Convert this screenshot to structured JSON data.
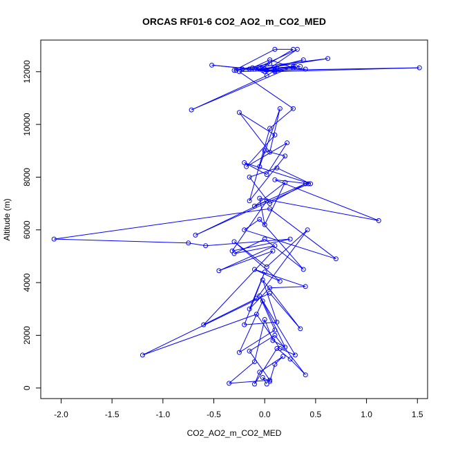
{
  "chart_data": {
    "type": "line",
    "title": "ORCAS RF01-6 CO2_AO2_m_CO2_MED",
    "xlabel": "CO2_AO2_m_CO2_MED",
    "ylabel": "Altitude (m)",
    "xlim": [
      -2.2,
      1.6
    ],
    "ylim": [
      -400,
      13200
    ],
    "xticks": [
      -2.0,
      -1.5,
      -1.0,
      -0.5,
      0.0,
      0.5,
      1.0,
      1.5
    ],
    "xtick_labels": [
      "-2.0",
      "-1.5",
      "-1.0",
      "-0.5",
      "0.0",
      "0.5",
      "1.0",
      "1.5"
    ],
    "yticks": [
      0,
      2000,
      4000,
      6000,
      8000,
      10000,
      12000
    ],
    "ytick_labels": [
      "0",
      "2000",
      "4000",
      "6000",
      "8000",
      "10000",
      "12000"
    ],
    "grid": false,
    "marker": "open-circle",
    "colors": {
      "series": "#0000ff",
      "axis": "#000000"
    },
    "series": [
      {
        "x": [
          0.02,
          -0.02,
          0.05,
          0.1,
          0.18,
          -0.05,
          -0.1,
          0.12,
          0.25,
          0.4,
          0.1,
          -0.15,
          0.05,
          -0.35,
          -0.1,
          0.0,
          0.08,
          0.2,
          -0.02,
          -0.25,
          0.1,
          -0.05,
          0.3,
          0.15,
          -0.08,
          -1.2,
          0.05,
          0.35,
          -0.02,
          0.12,
          -0.2,
          0.0,
          -0.15,
          0.05,
          0.4,
          -0.1,
          0.15,
          -0.3,
          0.02,
          0.42,
          -0.08,
          -0.6,
          0.08,
          -0.45,
          0.1,
          -0.3,
          0.0,
          0.38,
          -0.05,
          -0.2,
          0.7,
          0.05,
          -2.07,
          -0.75,
          -0.58,
          0.25,
          -0.32,
          0.02,
          -0.68,
          0.43,
          0.1,
          1.12,
          -0.05,
          0.0,
          0.2,
          -0.1,
          0.4,
          0.05,
          -0.15,
          0.12,
          0.45,
          -0.2,
          0.02,
          0.22,
          -0.18,
          0.1,
          -0.25,
          0.05,
          0.15,
          -0.05,
          0.0,
          0.2,
          -0.15,
          0.05,
          0.28,
          -0.25,
          0.1,
          0.02,
          -0.72,
          0.28,
          0.0,
          -0.28,
          0.05,
          -0.3,
          0.1,
          0.28,
          -0.05,
          0.3,
          0.02,
          -0.52,
          0.1,
          1.52,
          -0.02,
          0.38,
          0.0,
          -0.15,
          0.1,
          -0.05,
          0.62,
          -0.12,
          0.05,
          0.28,
          0.35,
          0.1,
          -0.1,
          0.32,
          0.0,
          0.4,
          0.12,
          -0.22
        ],
        "y": [
          150,
          400,
          250,
          900,
          1200,
          600,
          150,
          1500,
          1100,
          500,
          2000,
          1400,
          300,
          180,
          1000,
          2600,
          1800,
          1550,
          3300,
          1350,
          2200,
          3500,
          1250,
          1500,
          2800,
          1250,
          3600,
          2250,
          4100,
          2500,
          2400,
          4400,
          3000,
          3800,
          3850,
          4500,
          4050,
          5550,
          4600,
          6000,
          3400,
          2400,
          5200,
          4450,
          5400,
          5100,
          5650,
          4500,
          6400,
          6000,
          4900,
          6800,
          5650,
          5500,
          5400,
          5650,
          5200,
          7100,
          5800,
          7750,
          7900,
          6350,
          7200,
          6200,
          7800,
          6900,
          7750,
          7000,
          8000,
          8350,
          7750,
          8550,
          8100,
          9300,
          8400,
          9600,
          10450,
          8950,
          10600,
          8400,
          9000,
          8800,
          7100,
          9850,
          10600,
          12000,
          12050,
          11850,
          10550,
          12200,
          12100,
          12050,
          12300,
          12050,
          12850,
          12850,
          12100,
          12200,
          12050,
          12250,
          12000,
          12150,
          12050,
          12450,
          12100,
          12100,
          12050,
          12100,
          12500,
          12150,
          12450,
          12150,
          12200,
          12050,
          12100,
          12850,
          12000,
          12100,
          12150,
          12100
        ]
      }
    ]
  }
}
